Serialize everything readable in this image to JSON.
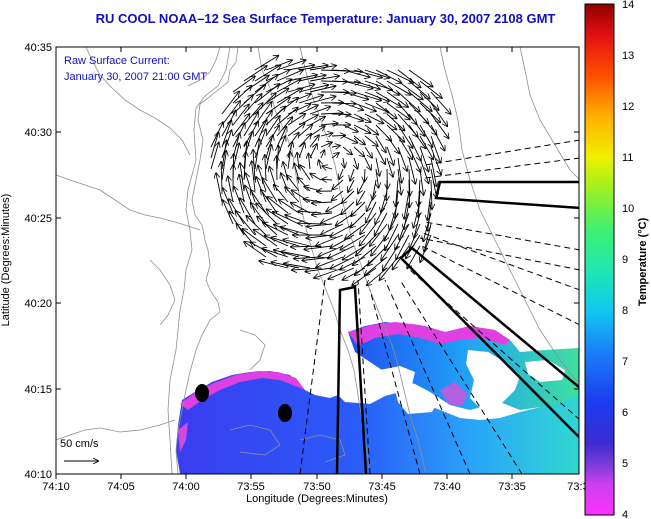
{
  "title": "RU COOL  NOAA–12  Sea Surface Temperature:  January 30, 2007 2108 GMT",
  "annotation": {
    "line1": "Raw Surface Current:",
    "line2": "January 30, 2007 21:00 GMT"
  },
  "scale_label": "50 cm/s",
  "x_axis": {
    "label": "Longitude (Degrees:Minutes)",
    "ticks": [
      "74:10",
      "74:05",
      "74:00",
      "73:55",
      "73:50",
      "73:45",
      "73:40",
      "73:35",
      "73:3"
    ]
  },
  "y_axis": {
    "label": "Latitude (Degrees:Minutes)",
    "ticks": [
      "40:35",
      "40:30",
      "40:25",
      "40:20",
      "40:15",
      "40:10"
    ]
  },
  "colorbar": {
    "label": "Temperature (°C)",
    "ticks": [
      "14",
      "13",
      "12",
      "11",
      "10",
      "9",
      "8",
      "7",
      "6",
      "5",
      "4"
    ],
    "min": 4,
    "max": 14
  },
  "colors": {
    "title": "#1010c0",
    "annotation": "#1010c0",
    "land_outline": "#909090",
    "vectors": "#000000"
  }
}
